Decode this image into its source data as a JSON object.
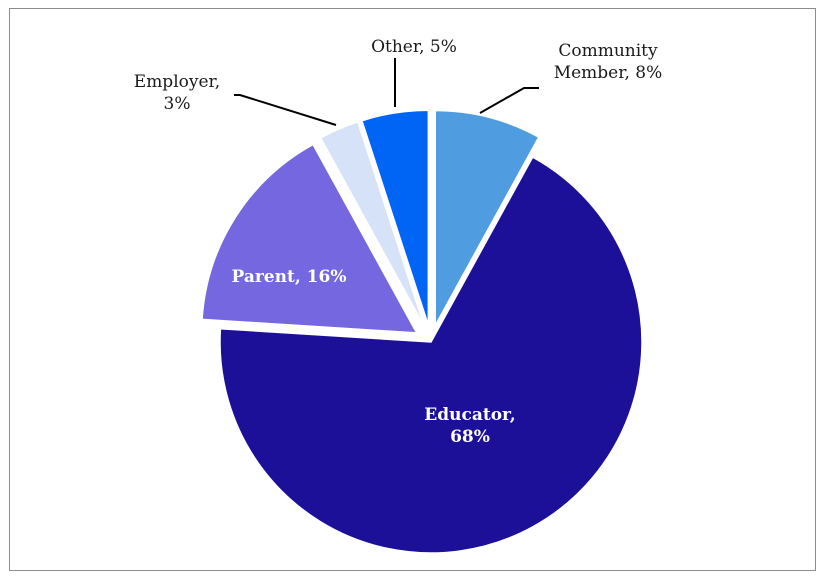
{
  "chart_data": {
    "type": "pie",
    "title": "",
    "start_angle_deg": 0,
    "direction": "clockwise",
    "slices": [
      {
        "label": "Community Member",
        "value": 8,
        "label_lines": [
          "Community",
          "Member, 8%"
        ],
        "color": "#4f9de0",
        "label_position": "outside",
        "exploded": true
      },
      {
        "label": "Educator",
        "value": 68,
        "label_lines": [
          "Educator,",
          "68%"
        ],
        "color": "#1c1099",
        "label_position": "inside",
        "exploded": false
      },
      {
        "label": "Parent",
        "value": 16,
        "label_lines": [
          "Parent, 16%"
        ],
        "color": "#7467e0",
        "label_position": "inside",
        "exploded": true
      },
      {
        "label": "Employer",
        "value": 3,
        "label_lines": [
          "Employer,",
          "3%"
        ],
        "color": "#d6e2f8",
        "label_position": "outside",
        "exploded": true
      },
      {
        "label": "Other",
        "value": 5,
        "label_lines": [
          "Other, 5%"
        ],
        "color": "#0064f5",
        "label_position": "outside",
        "exploded": true
      }
    ]
  }
}
